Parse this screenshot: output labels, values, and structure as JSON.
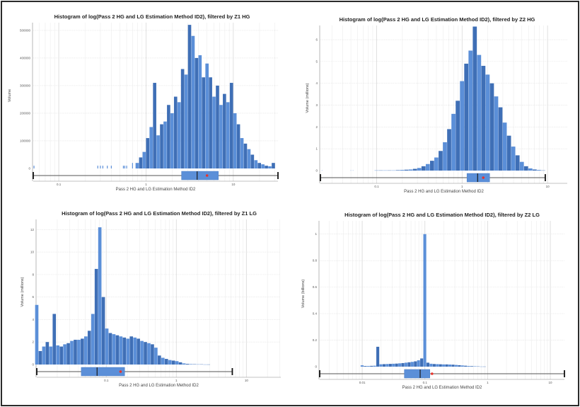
{
  "colors": {
    "bar": "#5b8fd8",
    "bar_alt": "#3f6fb6",
    "mean_marker": "#e8342c"
  },
  "chart_data": [
    {
      "type": "bar",
      "title": "Histogram of log(Pass 2 HG and LG Estimation Method ID2), filtered by Z1 HG",
      "xlabel": "Pass 2 HG and LG Estimation Method ID2",
      "ylabel": "Volume",
      "xscale": "log",
      "xlim": [
        0.051,
        32.5
      ],
      "ylim": [
        0,
        528000
      ],
      "xticks": [
        {
          "value": 0.1,
          "label": "0.1"
        },
        {
          "value": 1,
          "label": "1"
        },
        {
          "value": 10,
          "label": "10"
        }
      ],
      "yticks": [
        {
          "value": 0,
          "label": "0"
        },
        {
          "value": 100000,
          "label": "100000"
        },
        {
          "value": 200000,
          "label": "200000"
        },
        {
          "value": 300000,
          "label": "300000"
        },
        {
          "value": 400000,
          "label": "400000"
        },
        {
          "value": 500000,
          "label": "500000"
        }
      ],
      "bin_log10_start": -0.1,
      "bin_log10_step": 0.04,
      "counts": [
        20000,
        40000,
        60000,
        110000,
        150000,
        310000,
        120000,
        160000,
        170000,
        230000,
        200000,
        260000,
        240000,
        360000,
        340000,
        520000,
        480000,
        400000,
        410000,
        330000,
        380000,
        330000,
        260000,
        300000,
        230000,
        270000,
        240000,
        310000,
        200000,
        160000,
        110000,
        90000,
        70000,
        50000,
        30000,
        20000,
        15000,
        10000,
        8000,
        20000
      ],
      "sparse_bars": [
        [
          0.052,
          10000
        ],
        [
          0.28,
          10000
        ],
        [
          0.3,
          10000
        ],
        [
          0.32,
          10000
        ],
        [
          0.36,
          10000
        ],
        [
          0.4,
          10000
        ],
        [
          0.55,
          10000
        ],
        [
          0.57,
          10000
        ],
        [
          0.6,
          10000
        ],
        [
          0.7,
          20000
        ]
      ],
      "boxplot": {
        "whisker_min": 0.051,
        "q1": 2.55,
        "median": 3.85,
        "q3": 6.75,
        "whisker_max": 32.5,
        "mean": 5.0
      }
    },
    {
      "type": "bar",
      "title": "Histogram of log(Pass 2 HG and LG Estimation Method ID2), filtered by Z2 HG",
      "xlabel": "Pass 2 HG and LG Estimation Method ID2",
      "ylabel": "Volume (millions)",
      "xscale": "log",
      "xlim": [
        0.022,
        17
      ],
      "ylim": [
        0,
        6.65
      ],
      "xticks": [
        {
          "value": 0.1,
          "label": "0.1"
        },
        {
          "value": 1,
          "label": "1"
        },
        {
          "value": 10,
          "label": "10"
        }
      ],
      "yticks": [
        {
          "value": 0,
          "label": "0"
        },
        {
          "value": 1,
          "label": "1"
        },
        {
          "value": 2,
          "label": "2"
        },
        {
          "value": 3,
          "label": "3"
        },
        {
          "value": 4,
          "label": "4"
        },
        {
          "value": 5,
          "label": "5"
        },
        {
          "value": 6,
          "label": "6"
        }
      ],
      "bin_log10_start": -1.0,
      "bin_log10_step": 0.05,
      "counts": [
        0.01,
        0.01,
        0.01,
        0.01,
        0.01,
        0.02,
        0.03,
        0.04,
        0.05,
        0.08,
        0.12,
        0.2,
        0.3,
        0.45,
        0.6,
        0.9,
        1.3,
        1.9,
        2.6,
        3.2,
        4.1,
        4.9,
        5.5,
        6.6,
        5.3,
        4.8,
        4.4,
        4.0,
        3.4,
        2.9,
        2.2,
        1.6,
        1.1,
        0.7,
        0.4,
        0.2,
        0.1,
        0.05,
        0.03,
        0.01
      ],
      "sparse_bars": [
        [
          0.023,
          0.01
        ],
        [
          0.05,
          0.01
        ],
        [
          0.053,
          0.01
        ]
      ],
      "boxplot": {
        "whisker_min": 0.022,
        "q1": 1.14,
        "median": 1.52,
        "q3": 2.1,
        "whisker_max": 9.4,
        "mean": 1.77
      }
    },
    {
      "type": "bar",
      "title": "Histogram of log(Pass 2 HG and LG Estimation Method ID2), filtered by Z1 LG",
      "xlabel": "Pass 2 HG and LG Estimation Method ID2",
      "ylabel": "Volume (millions)",
      "xscale": "log",
      "xlim": [
        0.0102,
        31
      ],
      "ylim": [
        0,
        12.9
      ],
      "xticks": [
        {
          "value": 0.1,
          "label": "0.1"
        },
        {
          "value": 1,
          "label": "1"
        },
        {
          "value": 10,
          "label": "10"
        }
      ],
      "yticks": [
        {
          "value": 0,
          "label": "0"
        },
        {
          "value": 2,
          "label": "2"
        },
        {
          "value": 4,
          "label": "4"
        },
        {
          "value": 6,
          "label": "6"
        },
        {
          "value": 8,
          "label": "8"
        },
        {
          "value": 10,
          "label": "10"
        },
        {
          "value": 12,
          "label": "12"
        }
      ],
      "bin_log10_start": -1.99,
      "bin_log10_step": 0.05,
      "counts": [
        5.3,
        1.2,
        1.6,
        2.0,
        1.6,
        4.5,
        1.7,
        1.6,
        1.8,
        1.9,
        2.1,
        2.2,
        2.2,
        2.3,
        2.5,
        3.0,
        4.5,
        8.5,
        12.2,
        6.0,
        3.2,
        2.8,
        2.7,
        2.6,
        2.5,
        2.4,
        2.3,
        2.5,
        2.4,
        2.3,
        2.1,
        2.0,
        1.9,
        1.8,
        1.5,
        0.8,
        0.6,
        0.5,
        0.4,
        0.35,
        0.3,
        0.2,
        0.1,
        0.06,
        0.04,
        0.03,
        0.02,
        0.02,
        0.01,
        0.01
      ],
      "sparse_bars": [],
      "boxplot": {
        "whisker_min": 0.0102,
        "q1": 0.044,
        "median": 0.074,
        "q3": 0.183,
        "whisker_max": 6.3,
        "mean": 0.16
      }
    },
    {
      "type": "bar",
      "title": "Histogram of log(Pass 2 HG and LG Estimation Method ID2), filtered by Z2 LG",
      "xlabel": "Pass 2 HG and LG Estimation Method ID2",
      "ylabel": "Volume (billions)",
      "xscale": "log",
      "xlim": [
        0.0021,
        16.8
      ],
      "ylim": [
        0,
        1.1
      ],
      "xticks": [
        {
          "value": 0.01,
          "label": "0.01"
        },
        {
          "value": 0.1,
          "label": "0.1"
        },
        {
          "value": 1,
          "label": "1"
        },
        {
          "value": 10,
          "label": "10"
        }
      ],
      "yticks": [
        {
          "value": 0,
          "label": "0"
        },
        {
          "value": 0.2,
          "label": "0.2"
        },
        {
          "value": 0.4,
          "label": "0.4"
        },
        {
          "value": 0.6,
          "label": "0.6"
        },
        {
          "value": 0.8,
          "label": "0.8"
        },
        {
          "value": 1,
          "label": "1"
        }
      ],
      "bin_log10_start": -2.0,
      "bin_log10_step": 0.05,
      "counts": [
        0.01,
        0.005,
        0.005,
        0.006,
        0.007,
        0.15,
        0.018,
        0.019,
        0.02,
        0.021,
        0.022,
        0.023,
        0.025,
        0.027,
        0.03,
        0.033,
        0.036,
        0.04,
        0.048,
        0.062,
        1.0,
        0.03,
        0.022,
        0.02,
        0.019,
        0.018,
        0.017,
        0.017,
        0.016,
        0.015,
        0.013,
        0.011,
        0.009,
        0.007,
        0.005,
        0.004,
        0.003,
        0.002,
        0.001,
        0.001
      ],
      "sparse_bars": [],
      "boxplot": {
        "whisker_min": 0.0021,
        "q1": 0.047,
        "median": 0.084,
        "q3": 0.12,
        "whisker_max": 16.8,
        "mean": 0.13
      }
    }
  ]
}
